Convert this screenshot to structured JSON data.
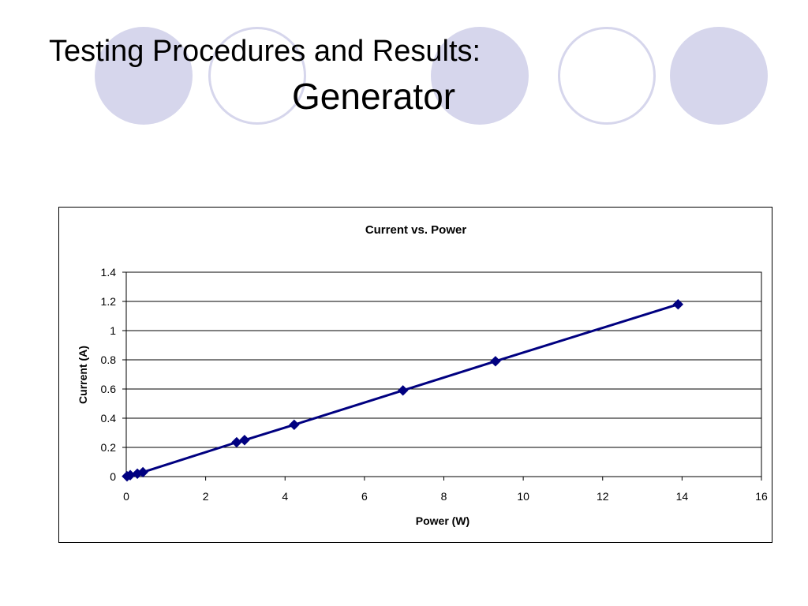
{
  "slide": {
    "title_line1": "Testing Procedures and Results:",
    "title_line2": "Generator",
    "decor_fill_color": "#d6d6ec"
  },
  "chart_data": {
    "type": "line",
    "title": "Current vs. Power",
    "xlabel": "Power (W)",
    "ylabel": "Current (A)",
    "xlim": [
      0,
      16
    ],
    "ylim": [
      0,
      1.4
    ],
    "x_ticks": [
      "0",
      "2",
      "4",
      "6",
      "8",
      "10",
      "12",
      "14",
      "16"
    ],
    "y_ticks": [
      "0",
      "0.2",
      "0.4",
      "0.6",
      "0.8",
      "1",
      "1.2",
      "1.4"
    ],
    "grid": "horizontal",
    "legend": "none",
    "series": [
      {
        "color": "#000080",
        "marker": "diamond",
        "x": [
          0.02,
          0.1,
          0.28,
          0.42,
          2.78,
          2.98,
          4.23,
          6.97,
          9.3,
          13.9
        ],
        "y": [
          0.002,
          0.01,
          0.02,
          0.03,
          0.235,
          0.25,
          0.355,
          0.59,
          0.79,
          1.18
        ]
      }
    ]
  }
}
